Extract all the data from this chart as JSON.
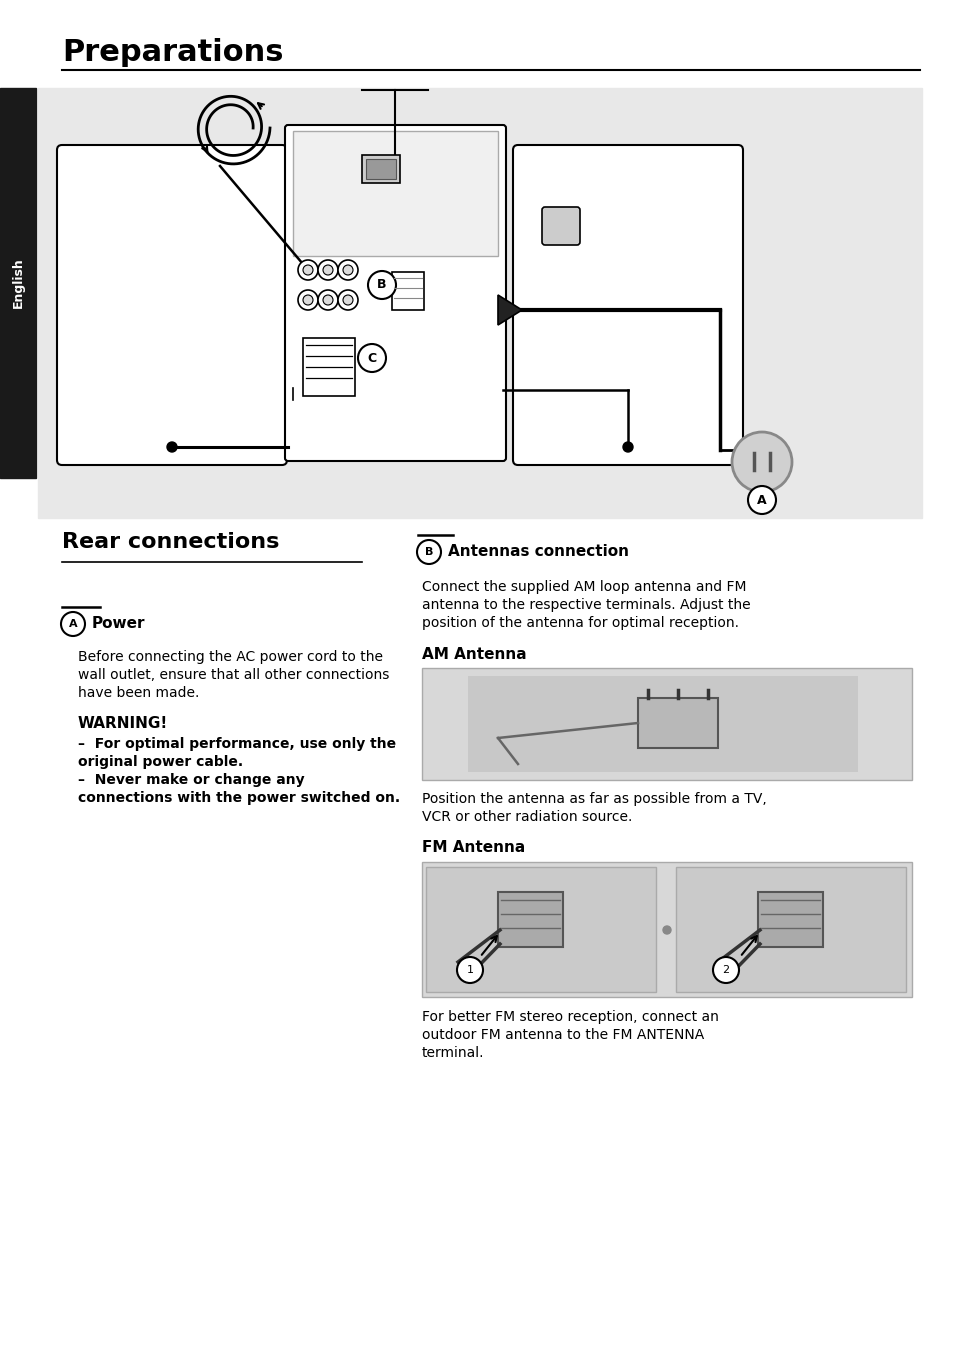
{
  "title": "Preparations",
  "bg_color": "#ffffff",
  "diagram_bg": "#e8e8e8",
  "sidebar_bg": "#1a1a1a",
  "sidebar_text": "English",
  "section_left_title": "Rear connections",
  "section_a_heading": "Power",
  "section_a_text1": "Before connecting the AC power cord to the",
  "section_a_text2": "wall outlet, ensure that all other connections",
  "section_a_text3": "have been made.",
  "warning_head": "WARNING!",
  "warning_line1": "–  For optimal performance, use only the",
  "warning_line2": "original power cable.",
  "warning_line3": "–  Never make or change any",
  "warning_line4": "connections with the power switched on.",
  "section_b_heading": "Antennas connection",
  "section_b_text1": "Connect the supplied AM loop antenna and FM",
  "section_b_text2": "antenna to the respective terminals. Adjust the",
  "section_b_text3": "position of the antenna for optimal reception.",
  "am_antenna_head": "AM Antenna",
  "am_caption1": "Position the antenna as far as possible from a TV,",
  "am_caption2": "VCR or other radiation source.",
  "fm_antenna_head": "FM Antenna",
  "fm_caption1": "For better FM stereo reception, connect an",
  "fm_caption2": "outdoor FM antenna to the FM ANTENNA",
  "fm_caption3": "terminal."
}
